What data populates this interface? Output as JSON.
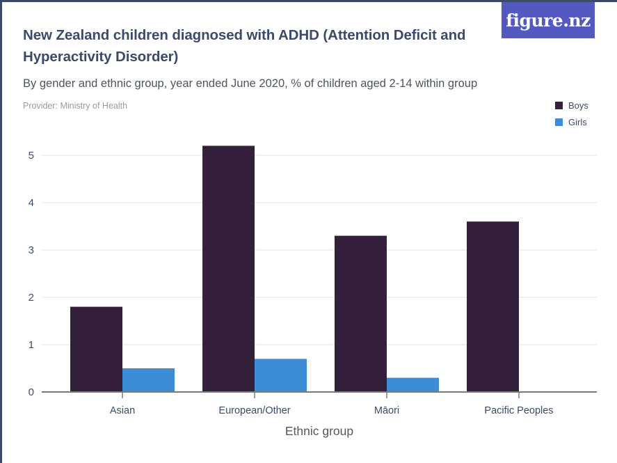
{
  "header": {
    "title": "New Zealand children diagnosed with ADHD (Attention Deficit and Hyperactivity Disorder)",
    "subtitle": "By gender and ethnic group, year ended June 2020, % of children aged 2-14 within group",
    "provider": "Provider: Ministry of Health",
    "logo_text": "figure.nz"
  },
  "legend": [
    {
      "label": "Boys",
      "color": "#35203b"
    },
    {
      "label": "Girls",
      "color": "#3d8dd6"
    }
  ],
  "chart_data": {
    "type": "bar",
    "title": "New Zealand children diagnosed with ADHD (Attention Deficit and Hyperactivity Disorder)",
    "subtitle": "By gender and ethnic group, year ended June 2020, % of children aged 2-14 within group",
    "categories": [
      "Asian",
      "European/Other",
      "Māori",
      "Pacific Peoples"
    ],
    "series": [
      {
        "name": "Boys",
        "color": "#35203b",
        "values": [
          1.8,
          5.2,
          3.3,
          3.6
        ]
      },
      {
        "name": "Girls",
        "color": "#3d8dd6",
        "values": [
          0.5,
          0.7,
          0.3,
          0
        ]
      }
    ],
    "xlabel": "Ethnic group",
    "ylabel": "",
    "ylim": [
      0,
      5
    ],
    "yticks": [
      0,
      1,
      2,
      3,
      4,
      5
    ],
    "grid": true,
    "legend_position": "top-right"
  },
  "colors": {
    "accent_border": "#3b4a6b",
    "logo_background": "#5459c1",
    "title_text": "#3b4a6b",
    "subtitle_text": "#4e545e",
    "provider_text": "#9b9b9b",
    "axis_label_text": "#3b4a6b",
    "xaxis_title_text": "#53575f",
    "gridline": "#e2e2e2",
    "axis_line": "#7a7a7a"
  }
}
